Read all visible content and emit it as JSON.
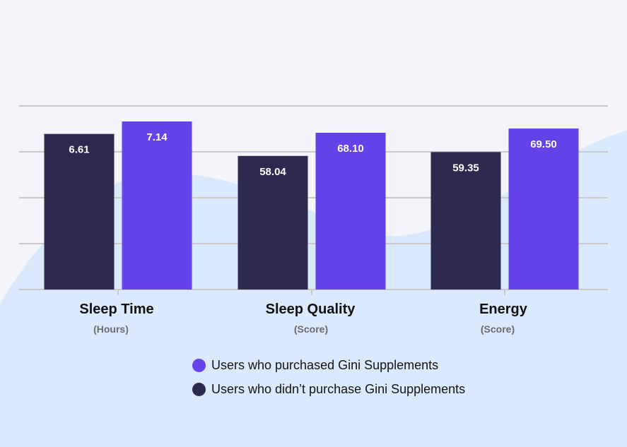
{
  "chart_data": {
    "type": "bar",
    "categories": [
      "Sleep Time",
      "Sleep Quality",
      "Energy"
    ],
    "category_units": [
      "(Hours)",
      "(Score)",
      "(Score)"
    ],
    "series": [
      {
        "name": "Users who didn’t purchase Gini Supplements",
        "color": "#2e2a4f",
        "values": [
          6.61,
          58.04,
          59.35
        ],
        "labels": [
          "6.61",
          "58.04",
          "59.35"
        ]
      },
      {
        "name": "Users who purchased Gini Supplements",
        "color": "#6244e8",
        "values": [
          7.14,
          68.1,
          69.5
        ],
        "labels": [
          "7.14",
          "68.10",
          "69.50"
        ]
      }
    ],
    "legend_order": [
      1,
      0
    ],
    "legend_placement": "bottom",
    "grid": true,
    "note": "Each category is plotted on its own scale (hours vs. score)"
  },
  "colors": {
    "background": "#f3f5fa",
    "wave": "#dbe9fd",
    "gridline": "#c9c9cc",
    "bar_value_text": "#ffffff"
  }
}
